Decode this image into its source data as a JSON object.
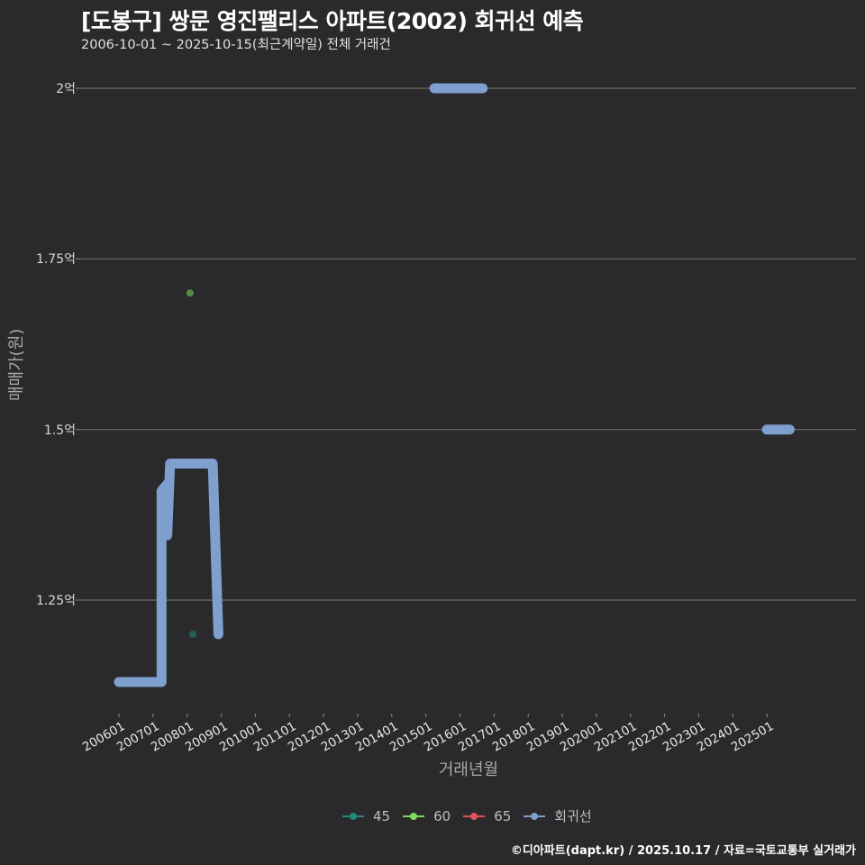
{
  "header": {
    "title": "[도봉구] 쌍문 영진팰리스 아파트(2002) 회귀선 예측",
    "subtitle": "2006-10-01 ~ 2025-10-15(최근계약일) 전체 거래건"
  },
  "footer": {
    "credit": "©디아파트(dapt.kr) / 2025.10.17 / 자료=국토교통부 실거래가"
  },
  "colors": {
    "background": "#2a2a2c",
    "gridline": "#6a6a6a",
    "series_45": "#1f8a7a",
    "series_60": "#7ddc5a",
    "series_65": "#e0515a",
    "regression": "#7f9fcf"
  },
  "chart_data": {
    "type": "line",
    "title": "[도봉구] 쌍문 영진팰리스 아파트(2002) 회귀선 예측",
    "subtitle": "2006-10-01 ~ 2025-10-15(최근계약일) 전체 거래건",
    "xlabel": "거래년월",
    "ylabel": "매매가(원)",
    "x_ticks": [
      "200601",
      "200701",
      "200801",
      "200901",
      "201001",
      "201101",
      "201201",
      "201301",
      "201401",
      "201501",
      "201601",
      "201701",
      "201801",
      "201901",
      "202001",
      "202101",
      "202201",
      "202301",
      "202401",
      "202501"
    ],
    "y_ticks": [
      "1.25억",
      "1.5억",
      "1.75억",
      "2억"
    ],
    "y_tick_values": [
      1.25,
      1.5,
      1.75,
      2.0
    ],
    "ylim": [
      1.1,
      2.05
    ],
    "y_unit": "억",
    "grid": true,
    "legend_position": "bottom",
    "legend": [
      "45",
      "60",
      "65",
      "회귀선"
    ],
    "series": [
      {
        "name": "45",
        "type": "scatter",
        "points": [
          {
            "x": "2008-03",
            "y": 1.2
          }
        ]
      },
      {
        "name": "60",
        "type": "scatter",
        "points": [
          {
            "x": "2008-02",
            "y": 1.7
          }
        ]
      },
      {
        "name": "65",
        "type": "scatter",
        "points": []
      },
      {
        "name": "회귀선",
        "type": "line",
        "segments": [
          [
            {
              "x": "2006-01",
              "y": 1.13
            },
            {
              "x": "2007-04",
              "y": 1.13
            },
            {
              "x": "2007-04",
              "y": 1.41
            },
            {
              "x": "2007-06",
              "y": 1.42
            },
            {
              "x": "2007-06",
              "y": 1.345
            },
            {
              "x": "2007-07",
              "y": 1.45
            },
            {
              "x": "2008-10",
              "y": 1.45
            },
            {
              "x": "2008-12",
              "y": 1.2
            }
          ],
          [
            {
              "x": "2015-04",
              "y": 2.0
            },
            {
              "x": "2016-09",
              "y": 2.0
            }
          ],
          [
            {
              "x": "2025-01",
              "y": 1.5
            },
            {
              "x": "2025-09",
              "y": 1.5
            }
          ]
        ]
      }
    ]
  },
  "legend": {
    "items": [
      {
        "label": "45"
      },
      {
        "label": "60"
      },
      {
        "label": "65"
      },
      {
        "label": "회귀선"
      }
    ]
  }
}
